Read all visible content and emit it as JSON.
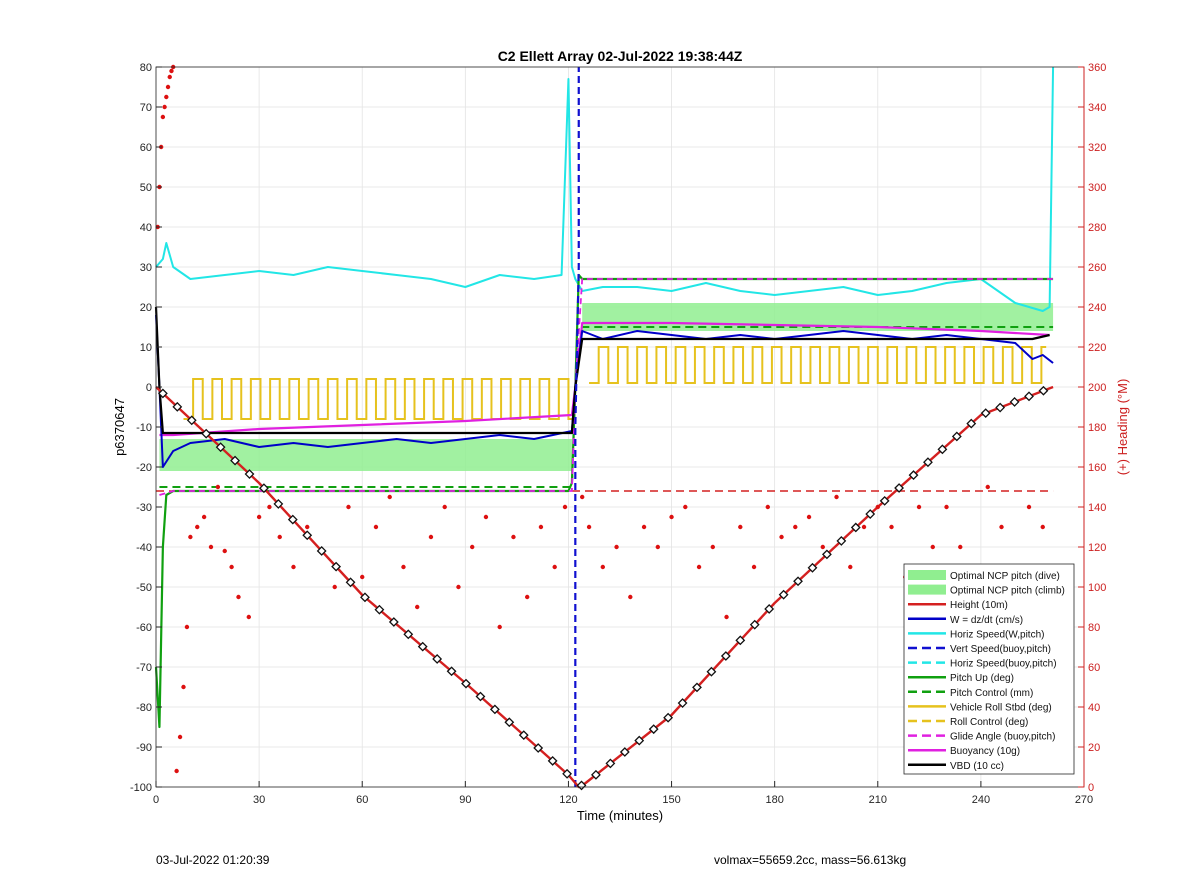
{
  "figure": {
    "footer_left": "03-Jul-2022 01:20:39",
    "footer_right": "volmax=55659.2cc, mass=56.613kg"
  },
  "chart_data": {
    "type": "line",
    "title": "C2 Ellett Array 02-Jul-2022 19:38:44Z",
    "xlabel": "Time (minutes)",
    "ylabel": "p6370647",
    "y2label": "(+) Heading (°M)",
    "xlim": [
      0,
      270
    ],
    "ylim": [
      -100,
      80
    ],
    "y2lim": [
      0,
      360
    ],
    "xticks": [
      0,
      30,
      60,
      90,
      120,
      150,
      180,
      210,
      240,
      270
    ],
    "yticks": [
      -100,
      -90,
      -80,
      -70,
      -60,
      -50,
      -40,
      -30,
      -20,
      -10,
      0,
      10,
      20,
      30,
      40,
      50,
      60,
      70,
      80
    ],
    "y2ticks": [
      0,
      20,
      40,
      60,
      80,
      100,
      120,
      140,
      160,
      180,
      200,
      220,
      240,
      260,
      280,
      300,
      320,
      340,
      360
    ],
    "grid": true,
    "legend_position": "bottom-right",
    "colors": {
      "ncp_fill": "#90ee90",
      "height": "#d42020",
      "w": "#0000c8",
      "horiz": "#22e6e6",
      "vert_buoy": "#1010d0",
      "pitch": "#10a010",
      "roll": "#e6c21e",
      "glide": "#e020e0",
      "buoyancy": "#e020e0",
      "vbd": "#000000",
      "heading": "#dd1010",
      "right_axis": "#cc2020"
    },
    "legend": [
      {
        "label": "Optimal NCP pitch (dive)",
        "kind": "patch",
        "color": "#90ee90"
      },
      {
        "label": "Optimal NCP pitch (climb)",
        "kind": "patch",
        "color": "#90ee90"
      },
      {
        "label": "Height (10m)",
        "kind": "solid",
        "color": "#d42020"
      },
      {
        "label": "W = dz/dt (cm/s)",
        "kind": "solid",
        "color": "#0000c8"
      },
      {
        "label": "Horiz Speed(W,pitch)",
        "kind": "solid",
        "color": "#22e6e6"
      },
      {
        "label": "Vert Speed(buoy,pitch)",
        "kind": "dashed",
        "color": "#1010d0"
      },
      {
        "label": "Horiz Speed(buoy,pitch)",
        "kind": "dashed",
        "color": "#22e6e6"
      },
      {
        "label": "Pitch Up (deg)",
        "kind": "solid",
        "color": "#10a010"
      },
      {
        "label": "Pitch Control (mm)",
        "kind": "dashed",
        "color": "#10a010"
      },
      {
        "label": "Vehicle Roll Stbd (deg)",
        "kind": "solid",
        "color": "#e6c21e"
      },
      {
        "label": "Roll Control (deg)",
        "kind": "dashed",
        "color": "#e6c21e"
      },
      {
        "label": "Glide Angle (buoy,pitch)",
        "kind": "dashed",
        "color": "#e020e0"
      },
      {
        "label": "Buoyancy (10g)",
        "kind": "solid",
        "color": "#e020e0"
      },
      {
        "label": "VBD (10 cc)",
        "kind": "solid",
        "color": "#000000"
      }
    ],
    "series": [
      {
        "key": "ncp_dive",
        "kind": "band",
        "x": [
          1,
          121
        ],
        "ylow": -21,
        "yhigh": -13
      },
      {
        "key": "ncp_climb",
        "kind": "band",
        "x": [
          124,
          261
        ],
        "ylow": 14,
        "yhigh": 21
      },
      {
        "key": "height",
        "kind": "line",
        "x": [
          0,
          5,
          30,
          60,
          90,
          120,
          123,
          125,
          150,
          180,
          210,
          240,
          261
        ],
        "y": [
          0,
          -4,
          -24,
          -52,
          -74,
          -97,
          -100,
          -99,
          -82,
          -54,
          -30,
          -7,
          0
        ]
      },
      {
        "key": "w",
        "kind": "line",
        "x": [
          0,
          1,
          2,
          5,
          10,
          20,
          30,
          40,
          50,
          60,
          70,
          80,
          90,
          100,
          110,
          121,
          122,
          124,
          130,
          140,
          150,
          160,
          170,
          180,
          190,
          200,
          210,
          220,
          230,
          240,
          250,
          255,
          258,
          261
        ],
        "y": [
          18,
          0,
          -20,
          -16,
          -14,
          -13,
          -15,
          -14,
          -15,
          -14,
          -13,
          -14,
          -13,
          -12,
          -13,
          -11,
          0,
          14,
          12,
          14,
          13,
          12,
          13,
          12,
          13,
          14,
          13,
          12,
          13,
          12,
          11,
          7,
          8,
          6
        ]
      },
      {
        "key": "horiz",
        "kind": "line",
        "x": [
          0,
          2,
          3,
          5,
          10,
          20,
          30,
          40,
          50,
          60,
          70,
          80,
          90,
          100,
          110,
          118,
          120,
          121,
          122,
          124,
          130,
          140,
          150,
          160,
          170,
          180,
          190,
          200,
          210,
          220,
          230,
          240,
          250,
          258,
          260,
          261
        ],
        "y": [
          30,
          32,
          36,
          30,
          27,
          28,
          29,
          28,
          30,
          29,
          28,
          27,
          25,
          28,
          27,
          28,
          77,
          30,
          27,
          24,
          25,
          25,
          24,
          26,
          24,
          23,
          24,
          25,
          23,
          24,
          26,
          27,
          21,
          19,
          20,
          80
        ]
      },
      {
        "key": "pitch_up",
        "kind": "line",
        "x": [
          0,
          1,
          2,
          3,
          5,
          10,
          30,
          60,
          90,
          120,
          121,
          122,
          123,
          124,
          150,
          180,
          210,
          240,
          261
        ],
        "y": [
          -70,
          -85,
          -40,
          -27,
          -26,
          -26,
          -26,
          -26,
          -26,
          -26,
          -24,
          0,
          28,
          27,
          27,
          27,
          27,
          27,
          27
        ]
      },
      {
        "key": "pitch_ctrl",
        "kind": "dashed",
        "x": [
          1,
          5,
          121,
          122,
          124,
          180,
          261
        ],
        "y": [
          -25,
          -25,
          -25,
          0,
          15,
          15,
          15
        ]
      },
      {
        "key": "buoyancy",
        "kind": "line",
        "x": [
          1,
          5,
          30,
          60,
          90,
          121,
          122,
          124,
          150,
          180,
          210,
          240,
          260
        ],
        "y": [
          -12,
          -12,
          -10.5,
          -9.5,
          -8.5,
          -7,
          0,
          16,
          16,
          15.5,
          15,
          14,
          13
        ]
      },
      {
        "key": "glide",
        "kind": "dashed",
        "x": [
          1,
          5,
          30,
          60,
          90,
          121,
          122,
          124,
          150,
          180,
          210,
          240,
          261
        ],
        "y": [
          -27,
          -26,
          -26,
          -26,
          -26,
          -26,
          0,
          27,
          27,
          27,
          27,
          27,
          27
        ]
      },
      {
        "key": "vbd",
        "kind": "line",
        "x": [
          0,
          1,
          2,
          30,
          60,
          90,
          121,
          122,
          124,
          150,
          180,
          210,
          240,
          255,
          260
        ],
        "y": [
          20,
          0,
          -11.5,
          -11.5,
          -11.5,
          -11.5,
          -11.5,
          0,
          12,
          12,
          12,
          12,
          12,
          12,
          13
        ]
      },
      {
        "key": "vert_buoy",
        "kind": "dashed",
        "x": [
          122,
          122,
          123,
          123
        ],
        "y": [
          -100,
          -10,
          30,
          80
        ]
      },
      {
        "key": "roll_ref",
        "kind": "dashed",
        "x": [
          0,
          261
        ],
        "y": [
          -26,
          -26
        ]
      },
      {
        "key": "roll_dive",
        "kind": "squarewave",
        "x0": 8,
        "x1": 121,
        "period": 5.6,
        "ylow": -8,
        "yhigh": 2
      },
      {
        "key": "roll_climb",
        "kind": "squarewave",
        "x0": 126,
        "x1": 259,
        "period": 5.6,
        "ylow": 1,
        "yhigh": 10
      },
      {
        "key": "heading",
        "kind": "scatter",
        "axis": "right",
        "x": [
          0.5,
          1,
          1.5,
          2,
          2.5,
          3,
          3.5,
          4,
          4.5,
          5,
          6,
          7,
          8,
          9,
          10,
          12,
          14,
          16,
          18,
          20,
          22,
          24,
          27,
          30,
          33,
          36,
          40,
          44,
          48,
          52,
          56,
          60,
          64,
          68,
          72,
          76,
          80,
          84,
          88,
          92,
          96,
          100,
          104,
          108,
          112,
          116,
          119,
          124,
          126,
          130,
          134,
          138,
          142,
          146,
          150,
          154,
          158,
          162,
          166,
          170,
          174,
          178,
          182,
          186,
          190,
          194,
          198,
          202,
          206,
          210,
          214,
          218,
          222,
          226,
          230,
          234,
          238,
          242,
          246,
          250,
          254,
          258
        ],
        "y": [
          280,
          300,
          320,
          335,
          340,
          345,
          350,
          355,
          358,
          360,
          8,
          25,
          50,
          80,
          125,
          130,
          135,
          120,
          150,
          118,
          110,
          95,
          85,
          135,
          140,
          125,
          110,
          130,
          118,
          100,
          140,
          105,
          130,
          145,
          110,
          90,
          125,
          140,
          100,
          120,
          135,
          80,
          125,
          95,
          130,
          110,
          140,
          145,
          130,
          110,
          120,
          95,
          130,
          120,
          135,
          140,
          110,
          120,
          85,
          130,
          110,
          140,
          125,
          130,
          135,
          120,
          145,
          110,
          130,
          140,
          130,
          105,
          140,
          120,
          140,
          120,
          110,
          150,
          130,
          110,
          140,
          130
        ]
      }
    ]
  }
}
